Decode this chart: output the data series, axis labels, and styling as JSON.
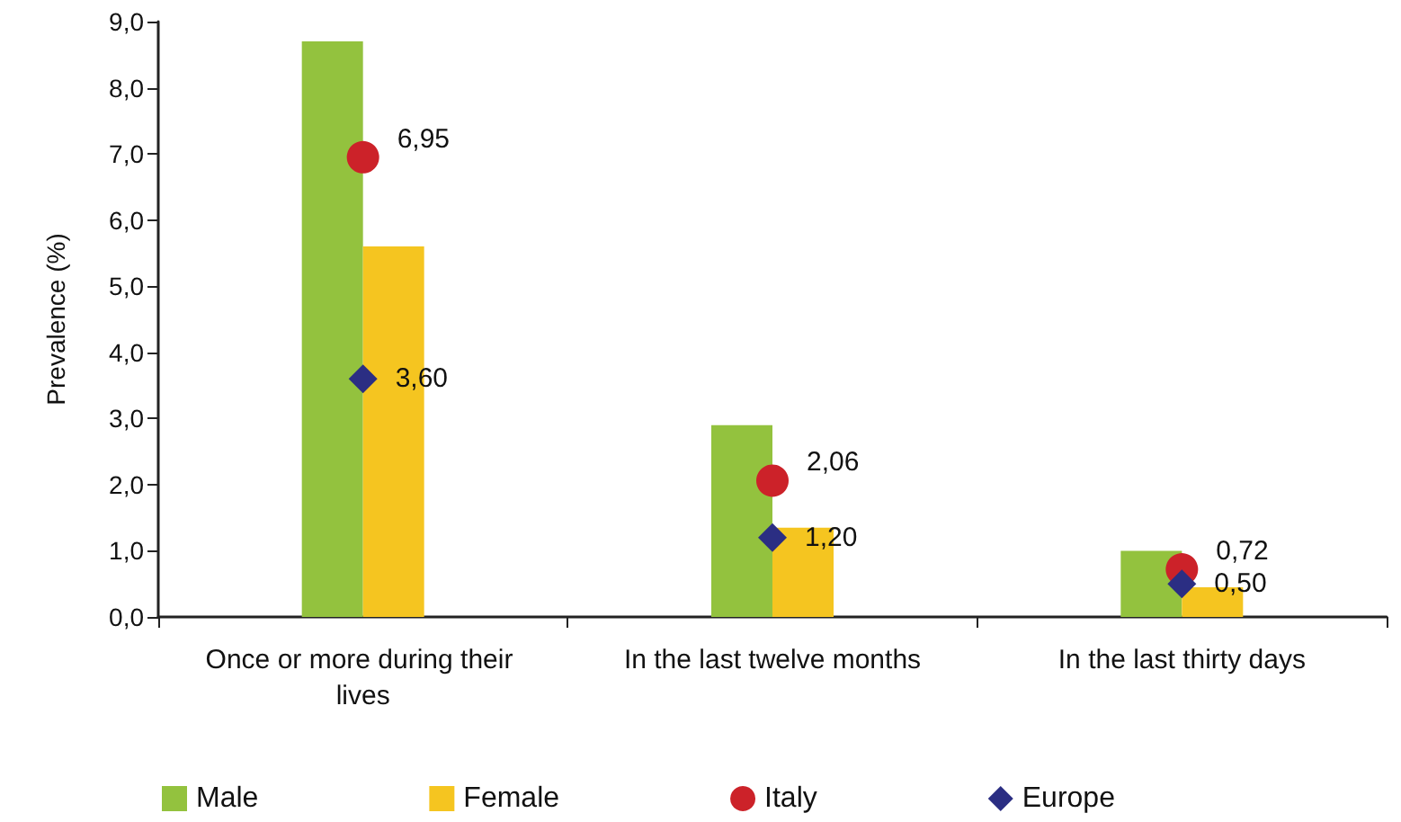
{
  "chart_data": {
    "type": "bar",
    "ylabel": "Prevalence (%)",
    "categories": [
      "Once or more during their lives",
      "In the last twelve months",
      "In the last thirty days"
    ],
    "series": [
      {
        "name": "Male",
        "color": "#93c23e",
        "values": [
          8.7,
          2.9,
          1.0
        ]
      },
      {
        "name": "Female",
        "color": "#f5c520",
        "values": [
          5.6,
          1.35,
          0.45
        ]
      },
      {
        "name": "Italy",
        "type": "scatter",
        "marker": "circle",
        "color": "#cc2229",
        "x": [
          "Once or more during their lives",
          "In the last twelve months",
          "In the last thirty days"
        ],
        "values": [
          6.95,
          2.06,
          0.72
        ],
        "value_labels": [
          "6,95",
          "2,06",
          "0,72"
        ]
      },
      {
        "name": "Europe",
        "type": "scatter",
        "marker": "diamond",
        "color": "#2b2e83",
        "x": [
          "Once or more during their lives",
          "In the last twelve months",
          "In the last thirty days"
        ],
        "values": [
          3.6,
          1.2,
          0.5
        ],
        "value_labels": [
          "3,60",
          "1,20",
          "0,50"
        ]
      }
    ],
    "ylim": [
      0,
      9
    ],
    "yticks": [
      {
        "value": 0,
        "label": "0,0"
      },
      {
        "value": 1,
        "label": "1,0"
      },
      {
        "value": 2,
        "label": "2,0"
      },
      {
        "value": 3,
        "label": "3,0"
      },
      {
        "value": 4,
        "label": "4,0"
      },
      {
        "value": 5,
        "label": "5,0"
      },
      {
        "value": 6,
        "label": "6,0"
      },
      {
        "value": 7,
        "label": "7,0"
      },
      {
        "value": 8,
        "label": "8,0"
      },
      {
        "value": 9,
        "label": "9,0"
      }
    ],
    "grid": false,
    "legend": "bottom"
  }
}
